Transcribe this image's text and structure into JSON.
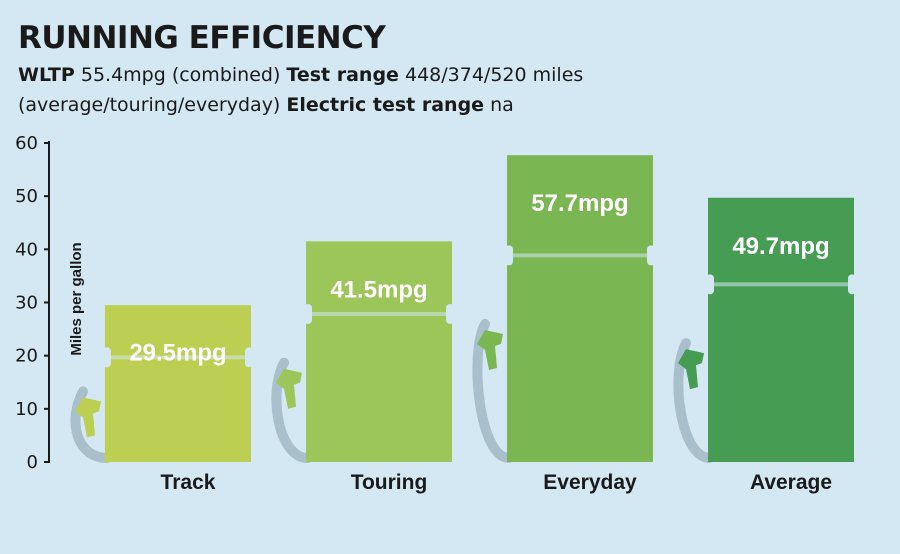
{
  "header": {
    "title": "RUNNING EFFICIENCY",
    "line1": {
      "wltp_label": "WLTP",
      "wltp_value": " 55.4mpg (combined) ",
      "range_label": "Test range",
      "range_value": " 448/374/520 miles"
    },
    "line2": {
      "prefix": "(average/touring/everyday) ",
      "electric_label": "Electric test range",
      "electric_value": " na"
    }
  },
  "chart_data": {
    "type": "bar",
    "categories": [
      "Track",
      "Touring",
      "Everyday",
      "Average"
    ],
    "values": [
      29.5,
      41.5,
      57.7,
      49.7
    ],
    "data_labels": [
      "29.5mpg",
      "41.5mpg",
      "57.7mpg",
      "49.7mpg"
    ],
    "ylabel": "Miles per gallon",
    "ylim": [
      0,
      60
    ],
    "yticks": [
      0,
      10,
      20,
      30,
      40,
      50,
      60
    ],
    "grid": false,
    "colors": [
      "#bccf52",
      "#9cc55a",
      "#7ab752",
      "#459c52"
    ],
    "text_color": "#ffffff",
    "hose_color": "#a9bfcb"
  }
}
